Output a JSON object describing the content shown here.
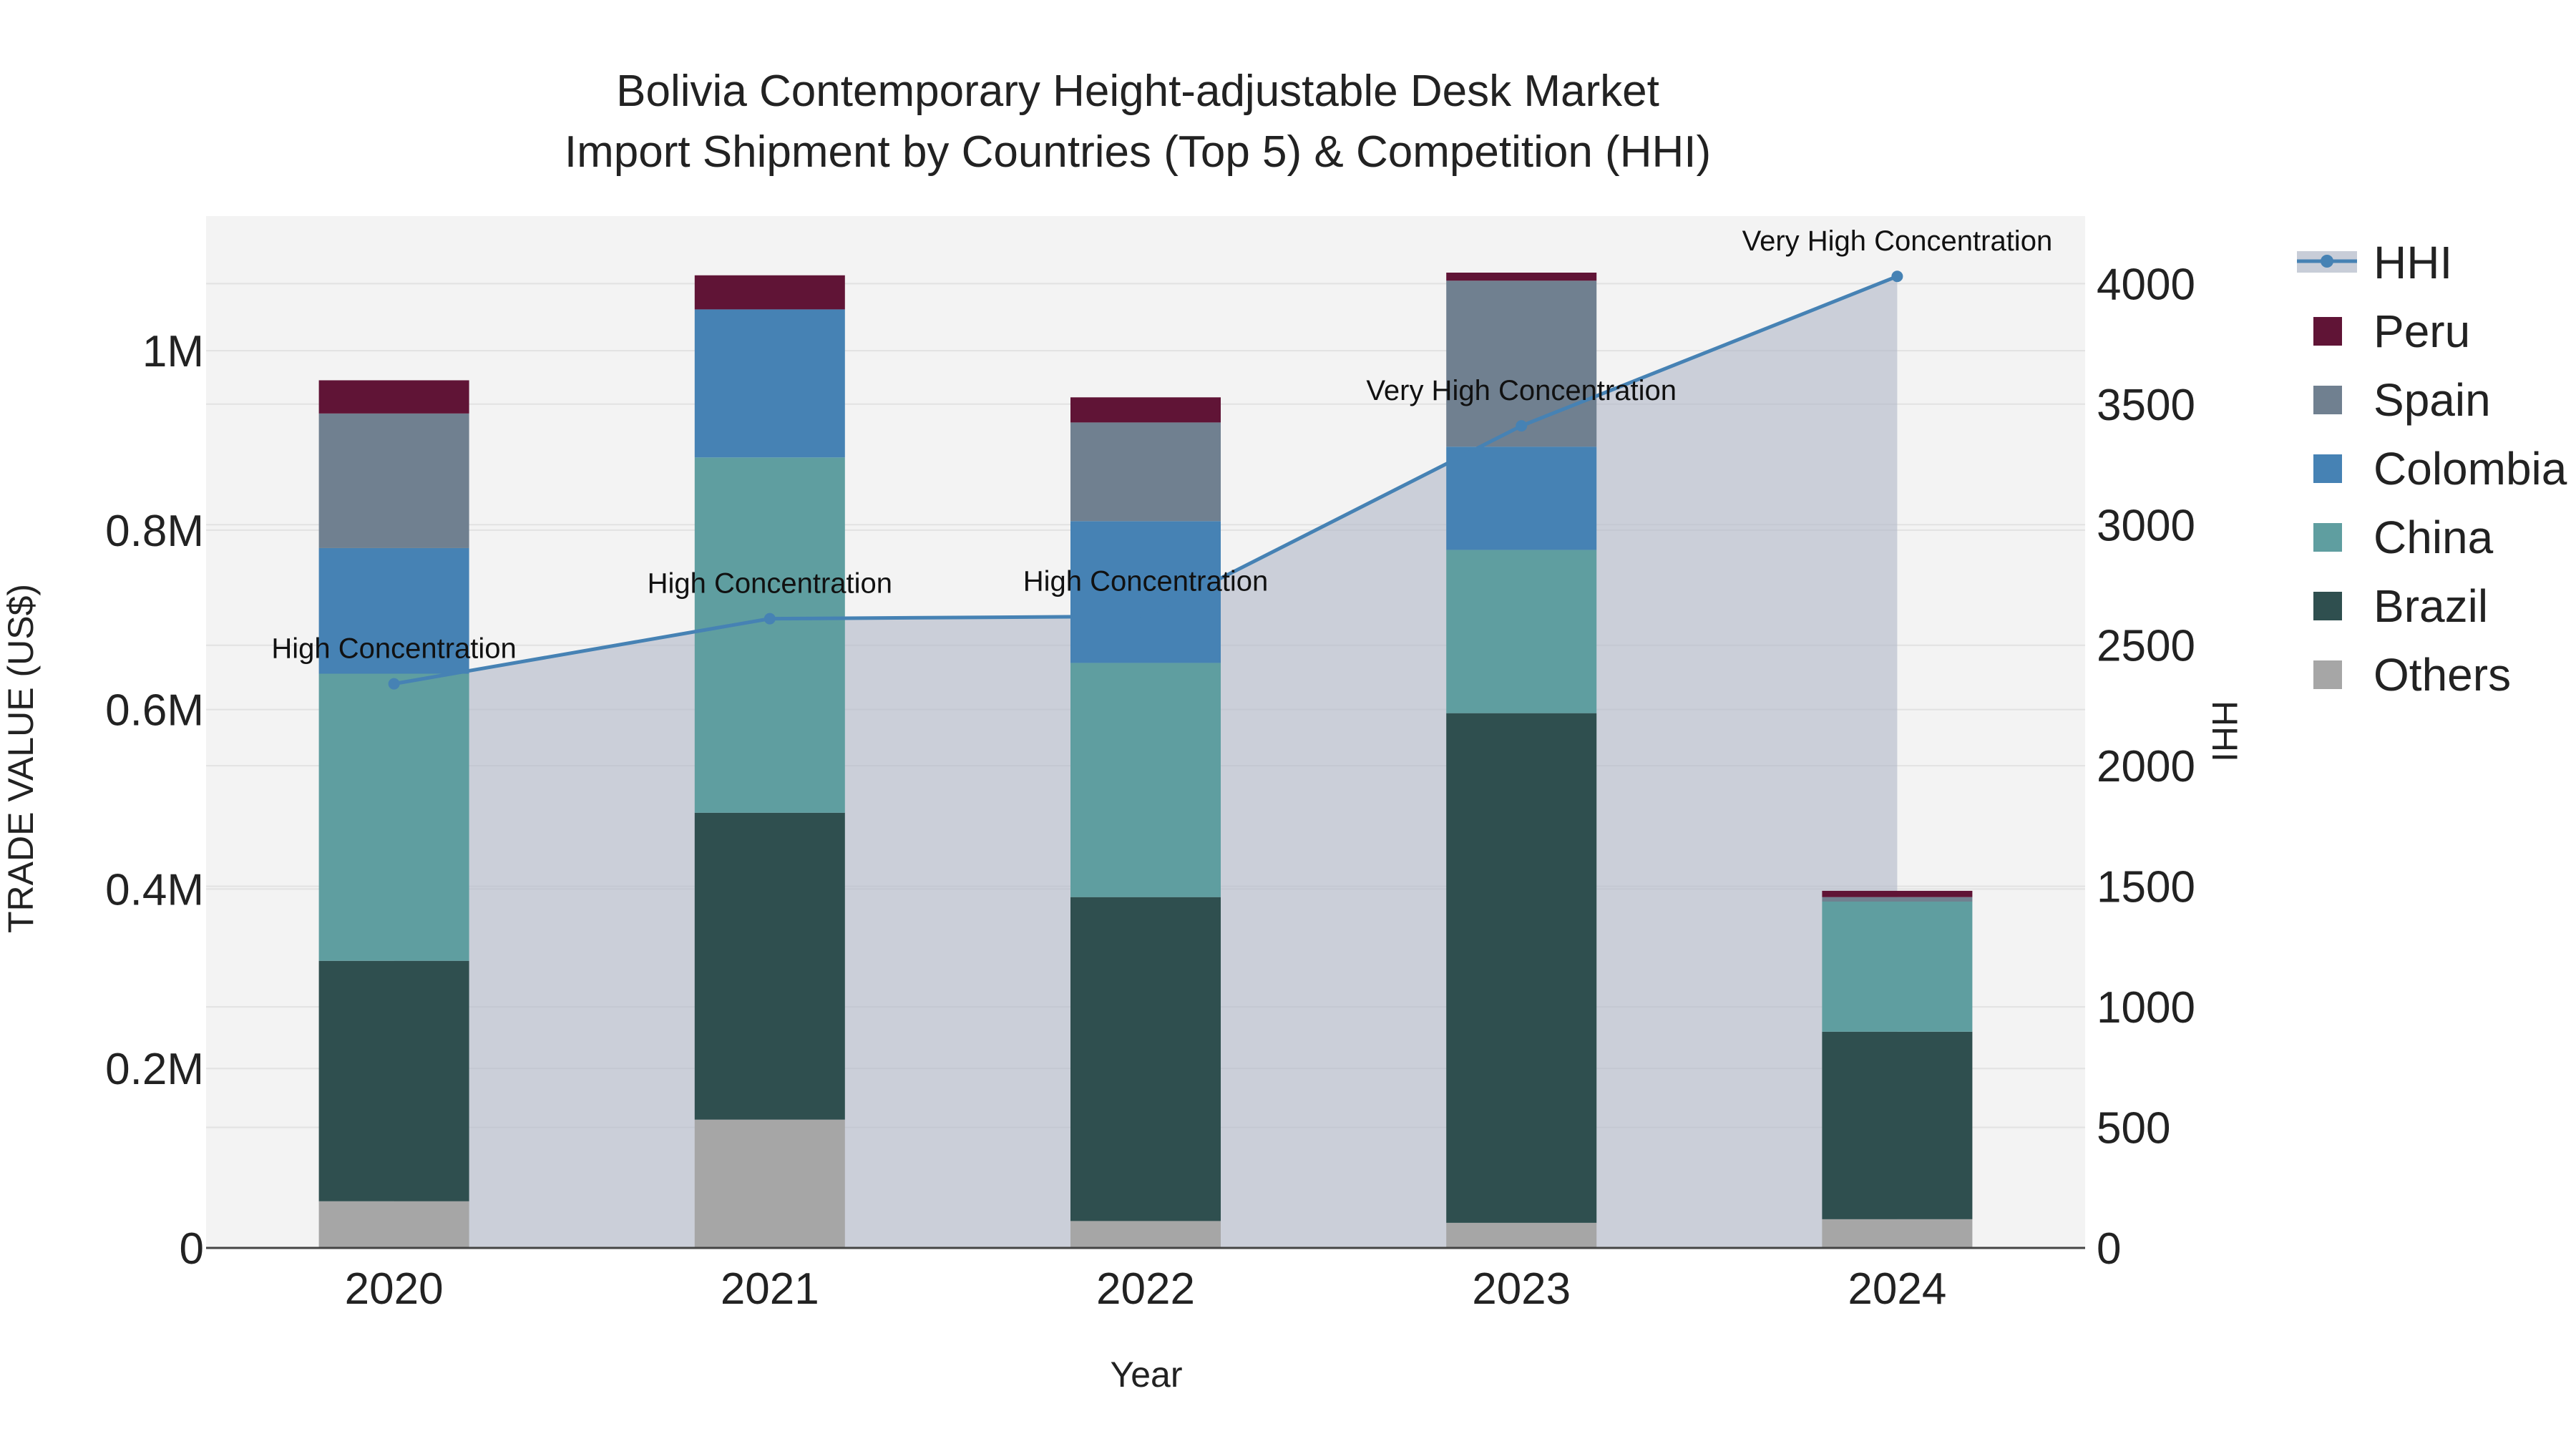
{
  "chart_data": {
    "type": "bar",
    "title_line1": "Bolivia Contemporary Height-adjustable Desk Market",
    "title_line2": "Import Shipment by Countries (Top 5) & Competition (HHI)",
    "xlabel": "Year",
    "ylabel": "TRADE VALUE (US$)",
    "y2label": "HHI",
    "categories": [
      "2020",
      "2021",
      "2022",
      "2023",
      "2024"
    ],
    "ylim": [
      0,
      1150000
    ],
    "y_ticks": [
      {
        "value": 0,
        "label": "0"
      },
      {
        "value": 200000,
        "label": "0.2M"
      },
      {
        "value": 400000,
        "label": "0.4M"
      },
      {
        "value": 600000,
        "label": "0.6M"
      },
      {
        "value": 800000,
        "label": "0.8M"
      },
      {
        "value": 1000000,
        "label": "1M"
      }
    ],
    "y2lim": [
      0,
      4280
    ],
    "y2_ticks": [
      {
        "value": 0,
        "label": "0"
      },
      {
        "value": 500,
        "label": "500"
      },
      {
        "value": 1000,
        "label": "1000"
      },
      {
        "value": 1500,
        "label": "1500"
      },
      {
        "value": 2000,
        "label": "2000"
      },
      {
        "value": 2500,
        "label": "2500"
      },
      {
        "value": 3000,
        "label": "3000"
      },
      {
        "value": 3500,
        "label": "3500"
      },
      {
        "value": 4000,
        "label": "4000"
      }
    ],
    "series": [
      {
        "name": "Others",
        "color": "#a6a6a6",
        "values": [
          52000,
          143000,
          30000,
          28000,
          32000
        ]
      },
      {
        "name": "Brazil",
        "color": "#2f4f4f",
        "values": [
          268000,
          342000,
          361000,
          568000,
          209000
        ]
      },
      {
        "name": "China",
        "color": "#5f9ea0",
        "values": [
          320000,
          396000,
          261000,
          182000,
          145000
        ]
      },
      {
        "name": "Colombia",
        "color": "#4682b4",
        "values": [
          140000,
          165000,
          158000,
          115000,
          0
        ]
      },
      {
        "name": "Spain",
        "color": "#708090",
        "values": [
          150000,
          0,
          110000,
          185000,
          5000
        ]
      },
      {
        "name": "Peru",
        "color": "#601436",
        "values": [
          37000,
          38000,
          28000,
          9000,
          7000
        ]
      }
    ],
    "hhi": {
      "name": "HHI",
      "color": "#4682b4",
      "values": [
        2340,
        2610,
        2620,
        3410,
        4030
      ],
      "annotations": [
        "High Concentration",
        "High Concentration",
        "High Concentration",
        "Very High Concentration",
        "Very High Concentration"
      ]
    },
    "legend": [
      "HHI",
      "Peru",
      "Spain",
      "Colombia",
      "China",
      "Brazil",
      "Others"
    ]
  }
}
